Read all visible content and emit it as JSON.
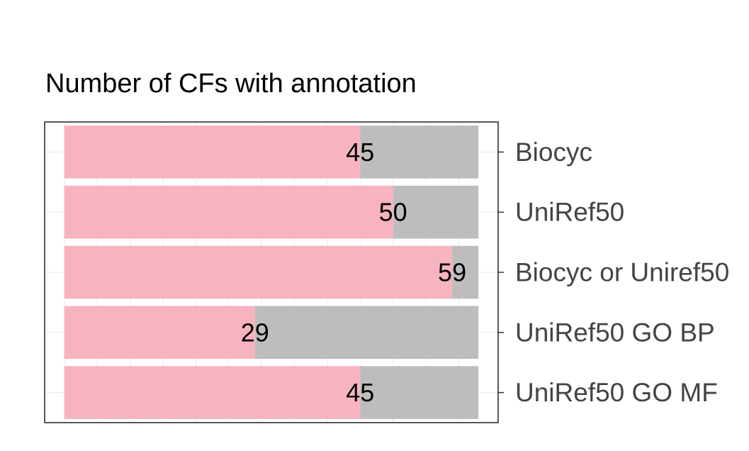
{
  "chart_data": {
    "type": "bar",
    "orientation": "horizontal",
    "stacked": true,
    "title": "Number of CFs with annotation",
    "xlabel": "",
    "ylabel": "",
    "categories": [
      "Biocyc",
      "UniRef50",
      "Biocyc or Uniref50",
      "UniRef50 GO BP",
      "UniRef50 GO MF"
    ],
    "series": [
      {
        "values": [
          45,
          50,
          59,
          29,
          45
        ],
        "color": "#F7B3C0"
      },
      {
        "values": [
          18,
          13,
          4,
          34,
          18
        ],
        "color": "#BEBDBD"
      }
    ],
    "data_labels": [
      "45",
      "50",
      "59",
      "29",
      "45"
    ],
    "total": 63,
    "xlim": [
      -3,
      66
    ],
    "grid": true,
    "legend": "none",
    "category_axis_position": "right"
  }
}
